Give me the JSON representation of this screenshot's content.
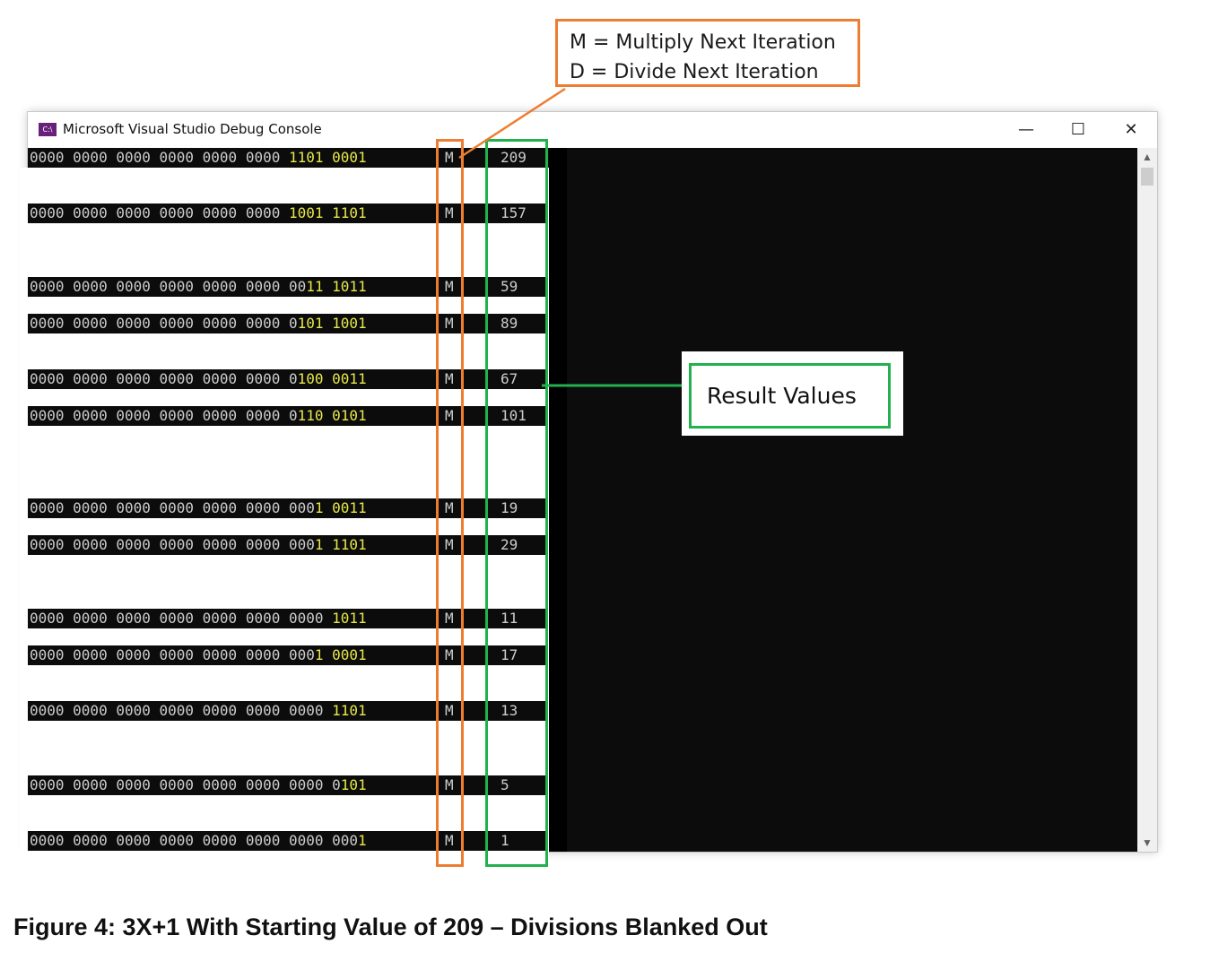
{
  "legend": {
    "line1": "M = Multiply Next Iteration",
    "line2": "D = Divide Next Iteration"
  },
  "window": {
    "icon_text": "C:\\",
    "title": "Microsoft Visual Studio Debug Console",
    "minimize_glyph": "—",
    "maximize_glyph": "☐",
    "close_glyph": "✕"
  },
  "rows": [
    {
      "prefix": "0000 0000 0000 0000 0000 0000 ",
      "highlight": "1101 0001",
      "flag": "M",
      "value": "209"
    },
    {
      "prefix": "0000 0000 0000 0000 0000 0000 ",
      "highlight": "1001 1101",
      "flag": "M",
      "value": "157"
    },
    {
      "prefix": "0000 0000 0000 0000 0000 0000 00",
      "highlight": "11 1011",
      "flag": "M",
      "value": "59"
    },
    {
      "prefix": "0000 0000 0000 0000 0000 0000 0",
      "highlight": "101 1001",
      "flag": "M",
      "value": "89"
    },
    {
      "prefix": "0000 0000 0000 0000 0000 0000 0",
      "highlight": "100 0011",
      "flag": "M",
      "value": "67"
    },
    {
      "prefix": "0000 0000 0000 0000 0000 0000 0",
      "highlight": "110 0101",
      "flag": "M",
      "value": "101"
    },
    {
      "prefix": "0000 0000 0000 0000 0000 0000 000",
      "highlight": "1 0011",
      "flag": "M",
      "value": "19"
    },
    {
      "prefix": "0000 0000 0000 0000 0000 0000 000",
      "highlight": "1 1101",
      "flag": "M",
      "value": "29"
    },
    {
      "prefix": "0000 0000 0000 0000 0000 0000 0000 ",
      "highlight": "1011",
      "flag": "M",
      "value": "11"
    },
    {
      "prefix": "0000 0000 0000 0000 0000 0000 000",
      "highlight": "1 0001",
      "flag": "M",
      "value": "17"
    },
    {
      "prefix": "0000 0000 0000 0000 0000 0000 0000 ",
      "highlight": "1101",
      "flag": "M",
      "value": "13"
    },
    {
      "prefix": "0000 0000 0000 0000 0000 0000 0000 0",
      "highlight": "101",
      "flag": "M",
      "value": "5"
    },
    {
      "prefix": "0000 0000 0000 0000 0000 0000 0000 000",
      "highlight": "1",
      "flag": "M",
      "value": "1"
    }
  ],
  "callout": {
    "label": "Result Values"
  },
  "caption": "Figure 4: 3X+1 With Starting Value of 209 – Divisions Blanked Out",
  "colors": {
    "orange": "#ED7D31",
    "green": "#22B14C",
    "console_bg": "#0c0c0c",
    "highlight_bits": "#e8e84a"
  }
}
